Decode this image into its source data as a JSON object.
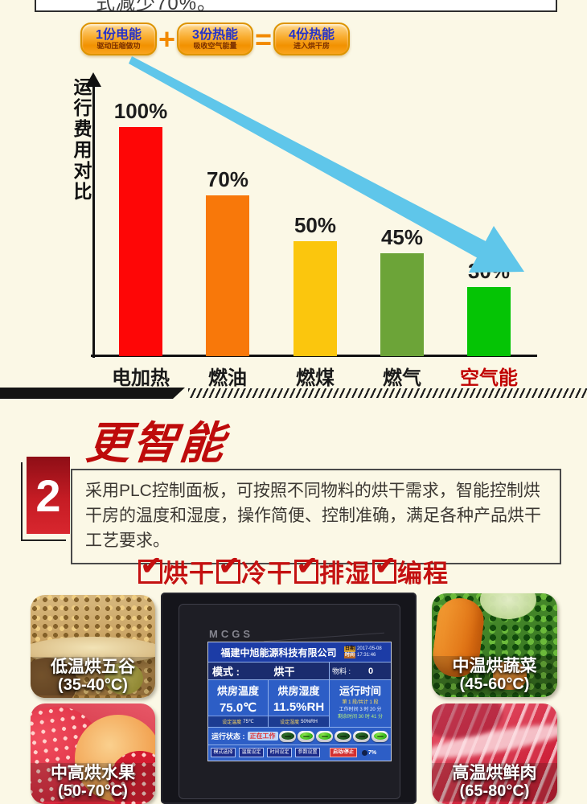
{
  "page": {
    "background": "#FBF8E6"
  },
  "top_note": {
    "visible_fragment": "式减少70%。"
  },
  "formula": {
    "plus": "+",
    "equals": "=",
    "items": [
      {
        "line1": "1份电能",
        "line2": "驱动压缩做功"
      },
      {
        "line1": "3份热能",
        "line2": "吸收空气能量"
      },
      {
        "line1": "4份热能",
        "line2": "进入烘干房"
      }
    ]
  },
  "chart_data": {
    "type": "bar",
    "title": "",
    "ylabel": "运行费用对比",
    "xlabel": "",
    "categories": [
      "电加热",
      "燃油",
      "燃煤",
      "燃气",
      "空气能"
    ],
    "values": [
      100,
      70,
      50,
      45,
      30
    ],
    "value_labels": [
      "100%",
      "70%",
      "50%",
      "45%",
      "30%"
    ],
    "bar_colors": [
      "#FE0606",
      "#F8780A",
      "#FBC60D",
      "#6CA438",
      "#05C405"
    ],
    "category_colors": [
      "#1A1A1A",
      "#1A1A1A",
      "#1A1A1A",
      "#1A1A1A",
      "#C00000"
    ],
    "ylim": [
      0,
      100
    ],
    "grid": false,
    "legend": "none",
    "annotation": "light-blue declining arrow from 电加热 down to 空气能",
    "arrow_color": "#5FC6EA"
  },
  "section2": {
    "number": "2",
    "title": "更智能",
    "body": "采用PLC控制面板，可按照不同物料的烘干需求，智能控制烘干房的温度和湿度，操作简便、控制准确，满足各种产品烘干工艺要求。",
    "modes": [
      "烘干",
      "冷干",
      "排湿",
      "编程"
    ]
  },
  "panel": {
    "brand": "MCGS",
    "screen": {
      "company": "福建中旭能源科技有限公司",
      "date_label": "日期",
      "date": "2017-05-08",
      "time_label": "时间",
      "time": "17:31:46",
      "mode_label": "模式 :",
      "mode_value": "烘干",
      "material_label": "物料 :",
      "material_value": "0",
      "temp": {
        "label": "烘房温度",
        "value": "75.0℃",
        "set_label": "设定温度",
        "set_value": "75℃"
      },
      "humidity": {
        "label": "烘房湿度",
        "value": "11.5%RH",
        "set_label": "设定湿度",
        "set_value": "50%RH"
      },
      "runtime": {
        "label": "运行时间",
        "lines": [
          "第 1 段/共计 1 段",
          "工作时间 3 时 20 分",
          "剩余时间 30 时 41 分"
        ]
      },
      "status_label": "运行状态 :",
      "status_value": "正在工作",
      "indicators": [
        {
          "lit": false
        },
        {
          "lit": true
        },
        {
          "lit": true
        },
        {
          "lit": false
        },
        {
          "lit": false
        },
        {
          "lit": true
        }
      ],
      "buttons": [
        "模式选择",
        "温度设定",
        "时间设定",
        "参数设置"
      ],
      "start_stop": "启动/停止",
      "percent": "7%"
    }
  },
  "cards": [
    {
      "title": "低温烘五谷",
      "temp": "(35-40°C)",
      "art": "grains"
    },
    {
      "title": "中温烘蔬菜",
      "temp": "(45-60°C)",
      "art": "vegetables"
    },
    {
      "title": "中高烘水果",
      "temp": "(50-70°C)",
      "art": "fruits"
    },
    {
      "title": "高温烘鲜肉",
      "temp": "(65-80°C)",
      "art": "meat"
    }
  ]
}
